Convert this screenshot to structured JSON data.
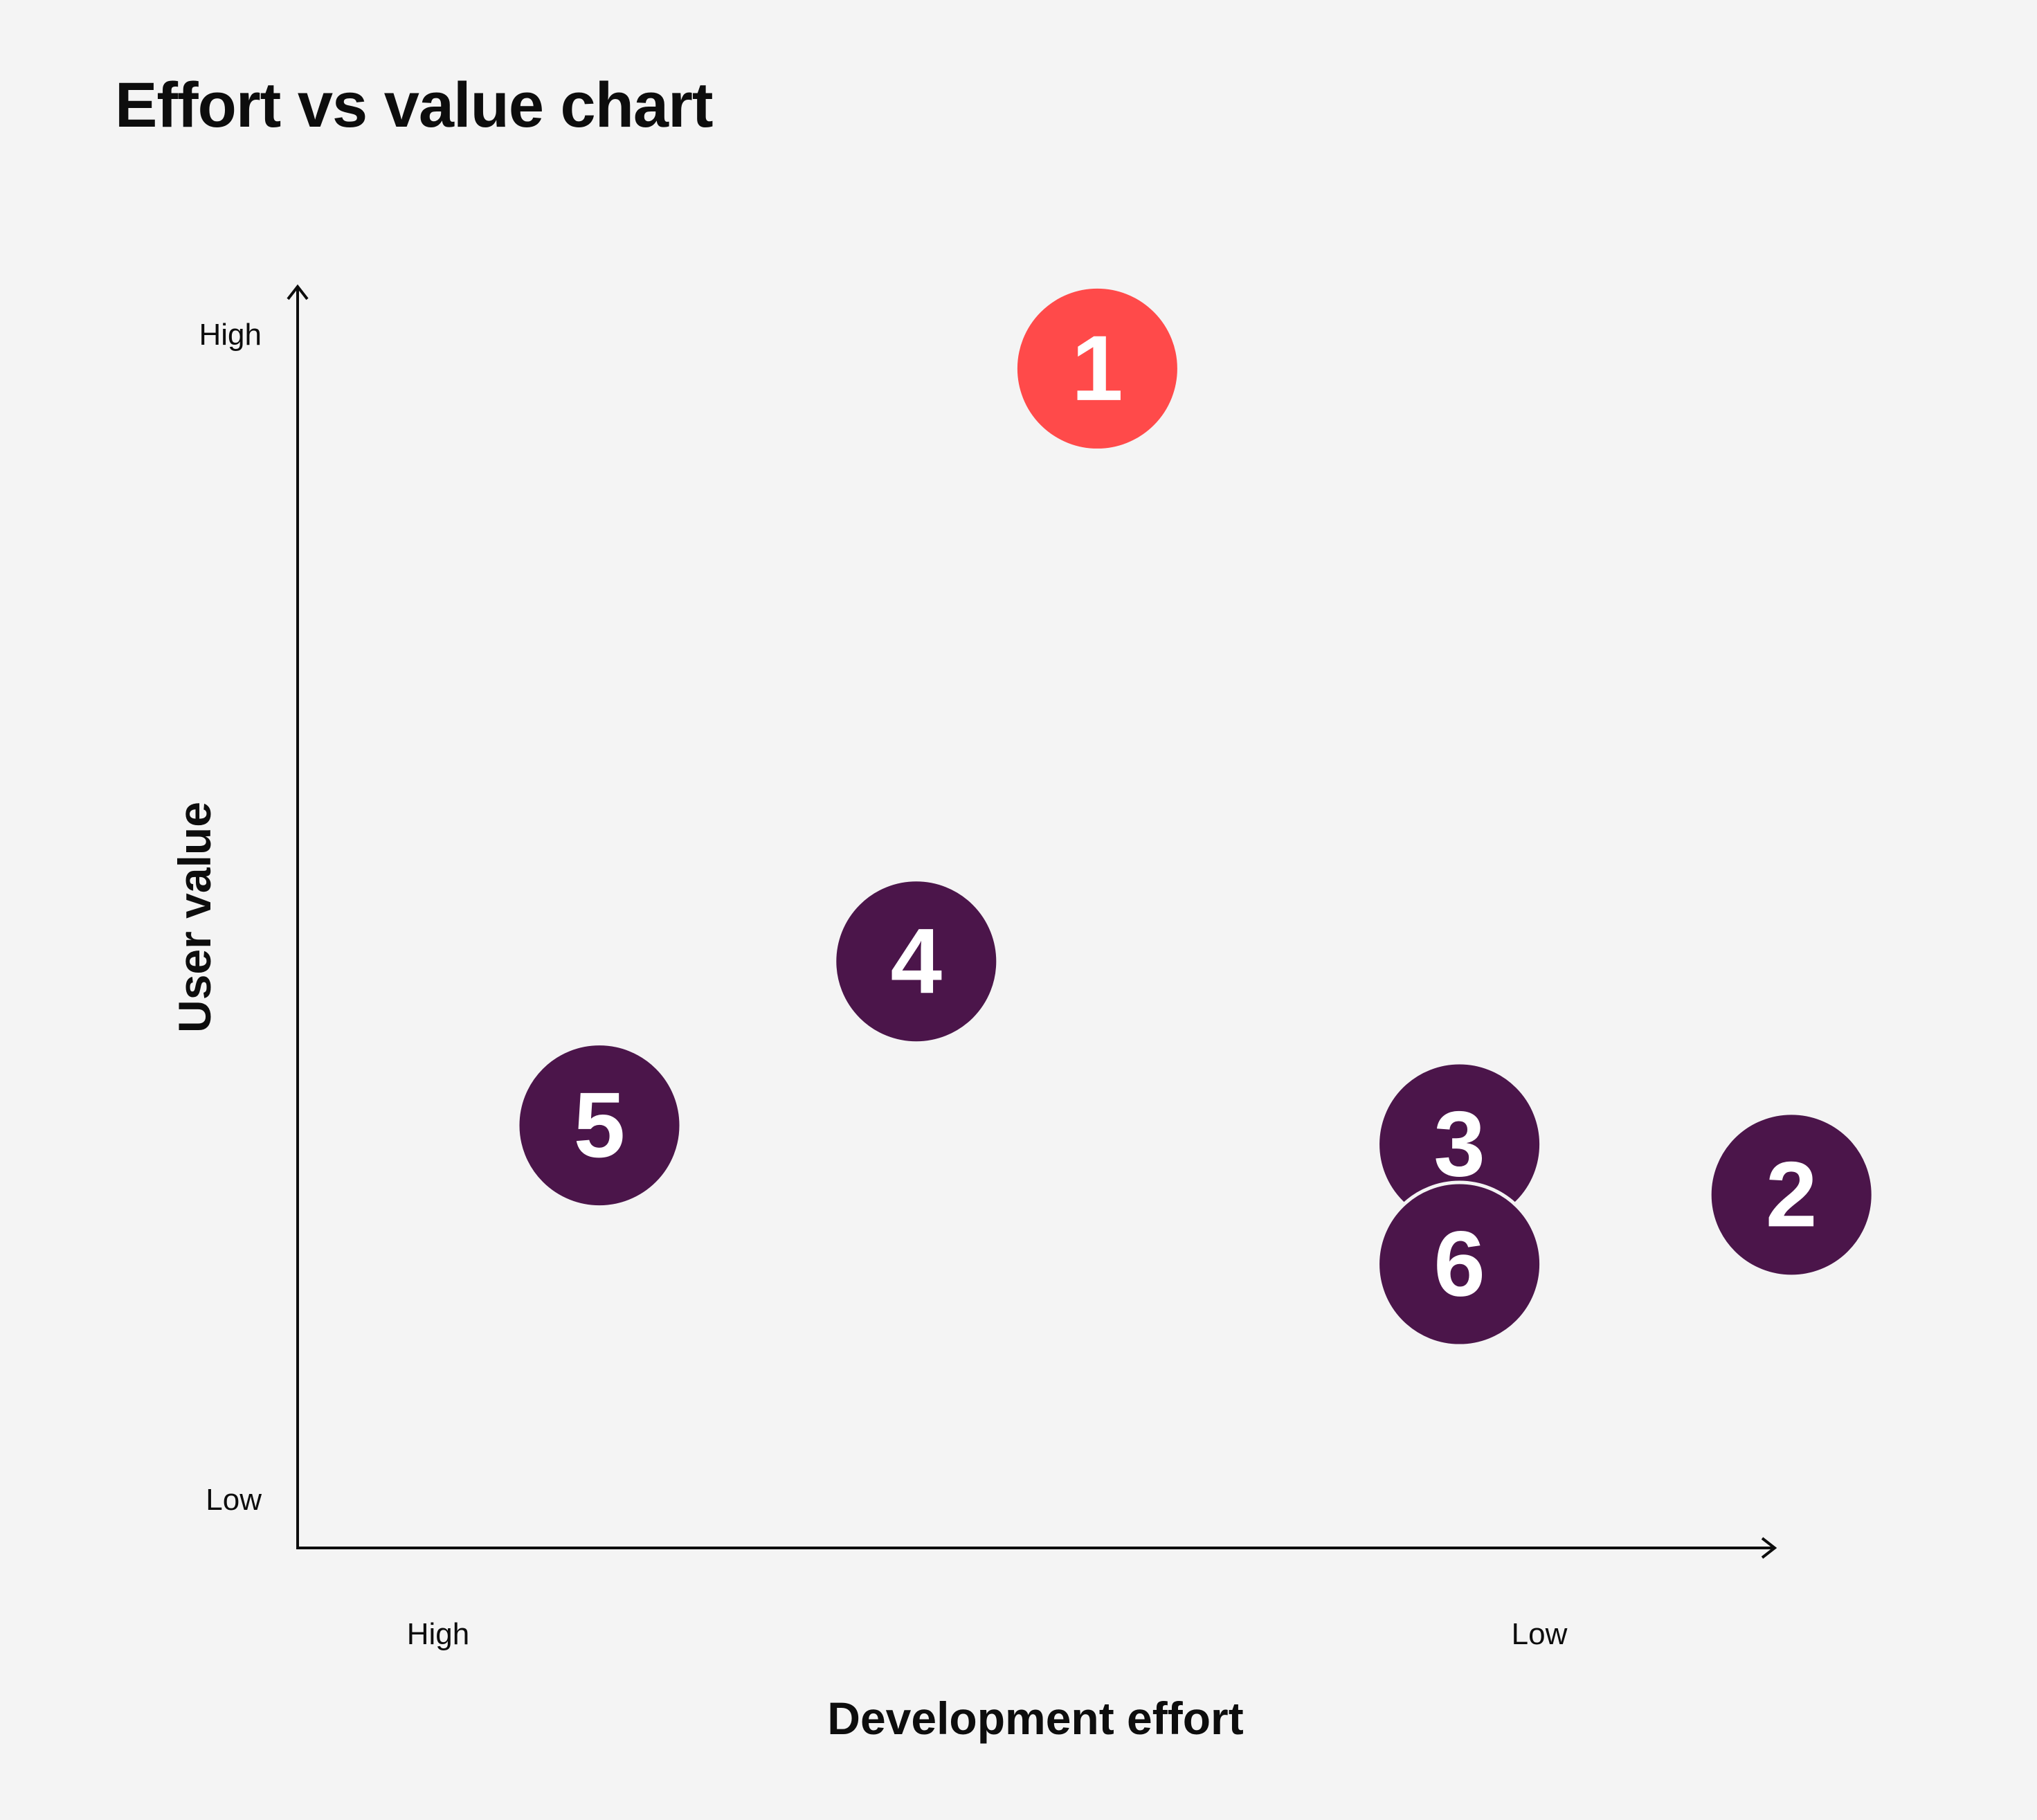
{
  "title": "Effort vs value chart",
  "colors": {
    "background": "#f4f4f4",
    "axis": "#0d0d0d",
    "highlight": "#ff4a4a",
    "default": "#4b154a",
    "label": "#ffffff"
  },
  "chart_data": {
    "type": "scatter",
    "title": "Effort vs value chart",
    "xlabel": "Development effort",
    "ylabel": "User value",
    "x_tick_labels": [
      "High",
      "Low"
    ],
    "y_tick_labels": [
      "High",
      "Low"
    ],
    "x_direction": "effort decreases left to right (High to Low)",
    "y_direction": "value increases bottom to top (Low to High)",
    "xlim": [
      0,
      10
    ],
    "ylim": [
      0,
      10
    ],
    "grid": false,
    "legend": "none",
    "points": [
      {
        "label": "1",
        "x": 5.3,
        "y": 9.35,
        "highlight": true
      },
      {
        "label": "2",
        "x": 9.9,
        "y": 2.8,
        "highlight": false
      },
      {
        "label": "3",
        "x": 7.7,
        "y": 3.2,
        "highlight": false
      },
      {
        "label": "4",
        "x": 4.1,
        "y": 4.65,
        "highlight": false
      },
      {
        "label": "5",
        "x": 2.0,
        "y": 3.35,
        "highlight": false
      },
      {
        "label": "6",
        "x": 7.7,
        "y": 2.25,
        "highlight": false
      }
    ]
  }
}
